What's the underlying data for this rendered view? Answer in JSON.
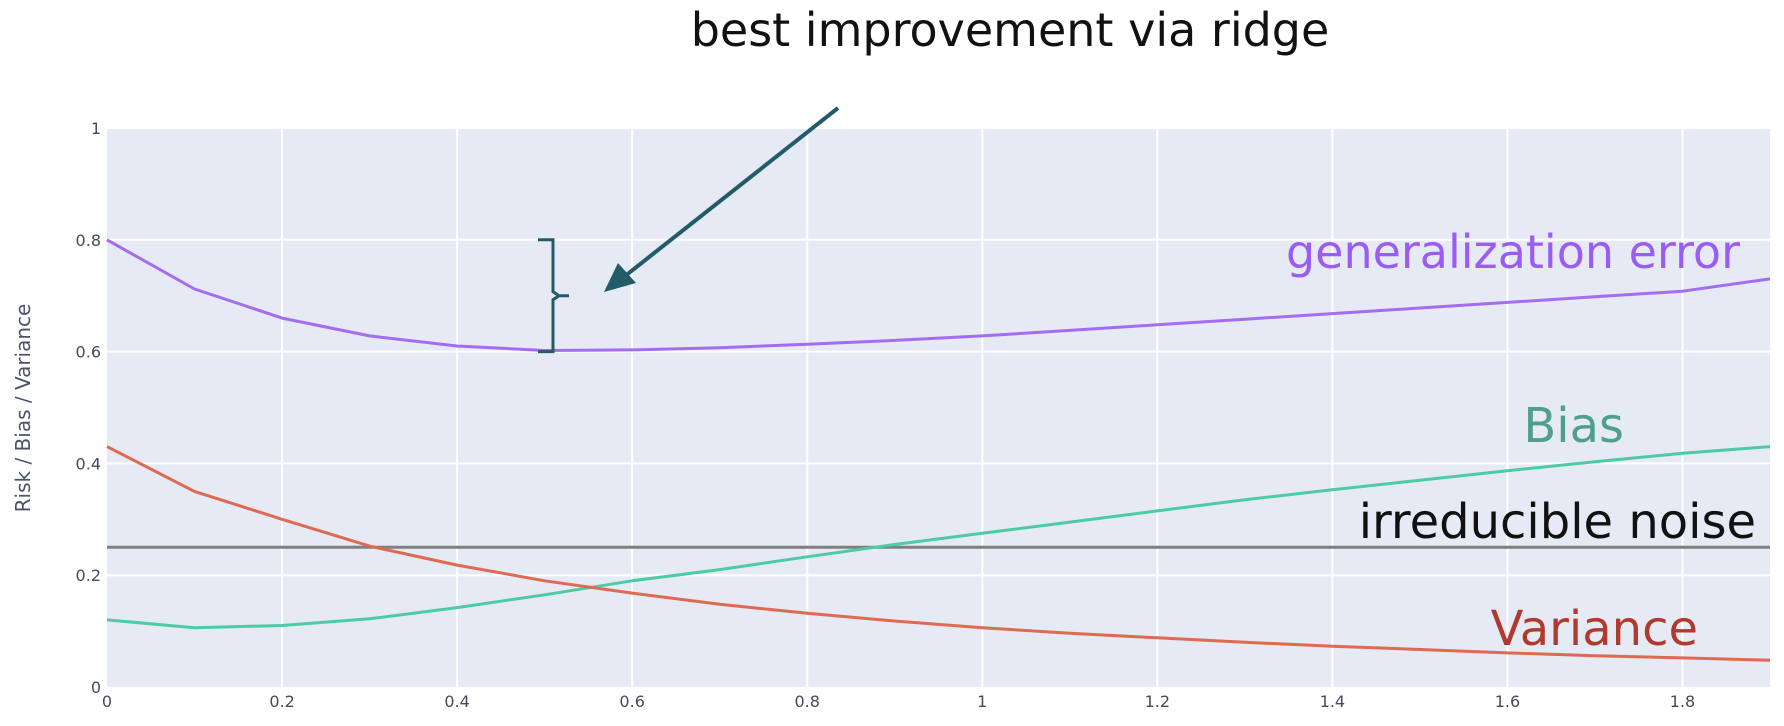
{
  "chart_data": {
    "type": "line",
    "title": "best improvement via ridge",
    "xlabel": "",
    "ylabel": "Risk / Bias / Variance",
    "xlim": [
      0,
      1.9
    ],
    "ylim": [
      0,
      1
    ],
    "x_ticks": [
      "0",
      "0.2",
      "0.4",
      "0.6",
      "0.8",
      "1",
      "1.2",
      "1.4",
      "1.6",
      "1.8"
    ],
    "x_tick_values": [
      0,
      0.2,
      0.4,
      0.6,
      0.8,
      1.0,
      1.2,
      1.4,
      1.6,
      1.8
    ],
    "y_ticks": [
      "0",
      "0.2",
      "0.4",
      "0.6",
      "0.8",
      "1"
    ],
    "y_tick_values": [
      0,
      0.2,
      0.4,
      0.6,
      0.8,
      1.0
    ],
    "grid": true,
    "x": [
      0,
      0.1,
      0.2,
      0.3,
      0.4,
      0.5,
      0.6,
      0.7,
      0.8,
      0.9,
      1.0,
      1.1,
      1.2,
      1.3,
      1.4,
      1.5,
      1.6,
      1.7,
      1.8,
      1.9
    ],
    "series": [
      {
        "name": "generalization error",
        "color": "#a46cf0",
        "label_color": "#9b5cf5",
        "values": [
          0.8,
          0.712,
          0.66,
          0.628,
          0.61,
          0.602,
          0.603,
          0.607,
          0.613,
          0.62,
          0.628,
          0.638,
          0.648,
          0.658,
          0.668,
          0.678,
          0.688,
          0.698,
          0.708,
          0.73
        ]
      },
      {
        "name": "Bias",
        "color": "#4ccba5",
        "label_color": "#4f9e8e",
        "values": [
          0.12,
          0.106,
          0.11,
          0.122,
          0.142,
          0.165,
          0.19,
          0.21,
          0.233,
          0.255,
          0.275,
          0.295,
          0.315,
          0.335,
          0.353,
          0.37,
          0.387,
          0.403,
          0.418,
          0.43
        ]
      },
      {
        "name": "Variance",
        "color": "#de6a52",
        "label_color": "#b03a2e",
        "values": [
          0.43,
          0.35,
          0.3,
          0.252,
          0.218,
          0.19,
          0.168,
          0.148,
          0.132,
          0.118,
          0.106,
          0.096,
          0.088,
          0.08,
          0.073,
          0.067,
          0.061,
          0.056,
          0.052,
          0.048
        ]
      },
      {
        "name": "irreducible noise",
        "color": "#7f7f7f",
        "label_color": "#111111",
        "values": [
          0.25,
          0.25,
          0.25,
          0.25,
          0.25,
          0.25,
          0.25,
          0.25,
          0.25,
          0.25,
          0.25,
          0.25,
          0.25,
          0.25,
          0.25,
          0.25,
          0.25,
          0.25,
          0.25,
          0.25
        ]
      }
    ],
    "annotation": {
      "text": "best improvement via ridge",
      "arrow_color": "#235c68",
      "bracket_y_range": [
        0.6,
        0.8
      ]
    },
    "colors": {
      "plot_bg": "#e5eaf4",
      "grid": "#ffffff"
    }
  }
}
